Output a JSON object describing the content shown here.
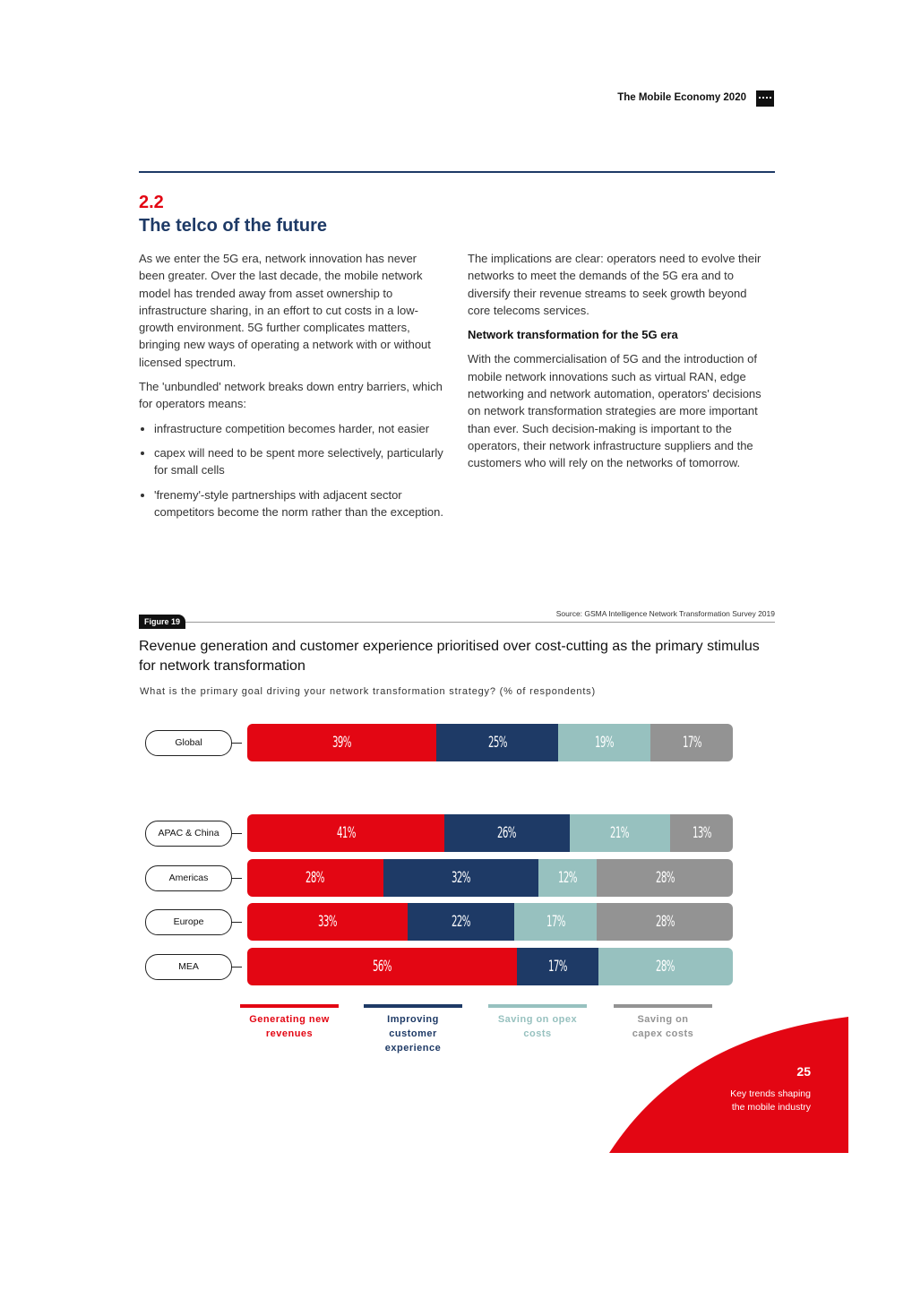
{
  "header": {
    "title": "The Mobile Economy 2020"
  },
  "section": {
    "number": "2.2",
    "title": "The telco of the future"
  },
  "left_column": {
    "p1": "As we enter the 5G era, network innovation has never been greater. Over the last decade, the mobile network model has trended away from asset ownership to infrastructure sharing, in an effort to cut costs in a low-growth environment. 5G further complicates matters, bringing new ways of operating a network with or without licensed spectrum.",
    "p2": "The 'unbundled' network breaks down entry barriers, which for operators means:",
    "bullets": [
      "infrastructure competition becomes harder, not easier",
      "capex will need to be spent more selectively, particularly for small cells",
      "'frenemy'-style partnerships with adjacent sector competitors become the norm rather than the exception."
    ]
  },
  "right_column": {
    "p1": "The implications are clear: operators need to evolve their networks to meet the demands of the 5G era and to diversify their revenue streams to seek growth beyond core telecoms services.",
    "heading": "Network transformation for the 5G era",
    "p2": "With the commercialisation of 5G and the introduction of mobile network innovations such as virtual RAN, edge networking and network automation, operators' decisions on network transformation strategies are more important than ever. Such decision-making is important to the operators, their network infrastructure suppliers and the customers who will rely on the networks of tomorrow."
  },
  "figure": {
    "badge": "Figure 19",
    "source": "Source: GSMA Intelligence Network Transformation Survey 2019"
  },
  "chart_data": {
    "type": "bar",
    "stacked": true,
    "orientation": "horizontal",
    "title": "Revenue generation and customer experience prioritised over cost-cutting as the primary stimulus for network transformation",
    "subtitle": "What is the primary goal driving your network transformation strategy? (% of respondents)",
    "categories": [
      "Global",
      "APAC & China",
      "Americas",
      "Europe",
      "MEA"
    ],
    "series": [
      {
        "name": "Generating new revenues",
        "color": "#e30613",
        "values": [
          39,
          41,
          28,
          33,
          56
        ]
      },
      {
        "name": "Improving customer experience",
        "color": "#1e3a66",
        "values": [
          25,
          26,
          32,
          22,
          17
        ]
      },
      {
        "name": "Saving on opex costs",
        "color": "#97c1bf",
        "values": [
          19,
          21,
          12,
          17,
          28
        ]
      },
      {
        "name": "Saving on capex costs",
        "color": "#939393",
        "values": [
          17,
          13,
          28,
          28,
          0
        ]
      }
    ],
    "legend_position": "bottom"
  },
  "footer": {
    "page": "25",
    "subtitle_line1": "Key trends shaping",
    "subtitle_line2": "the mobile industry"
  }
}
